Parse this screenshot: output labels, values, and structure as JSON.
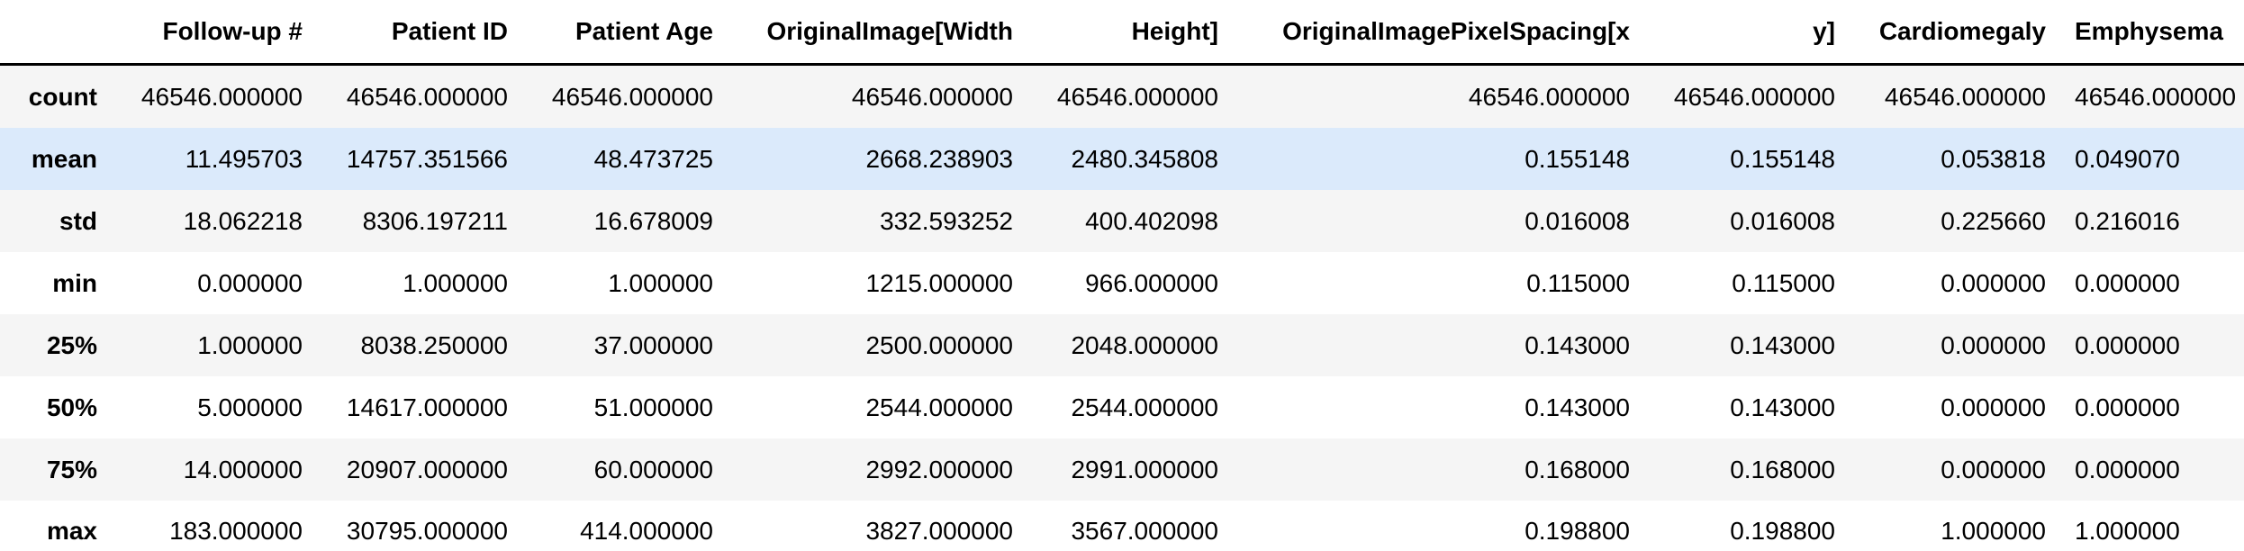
{
  "table": {
    "columns": [
      "",
      "Follow-up #",
      "Patient ID",
      "Patient Age",
      "OriginalImage[Width",
      "Height]",
      "OriginalImagePixelSpacing[x",
      "y]",
      "Cardiomegaly",
      "Emphysema"
    ],
    "rows": [
      {
        "label": "count",
        "values": [
          "46546.000000",
          "46546.000000",
          "46546.000000",
          "46546.000000",
          "46546.000000",
          "46546.000000",
          "46546.000000",
          "46546.000000",
          "46546.000000"
        ]
      },
      {
        "label": "mean",
        "values": [
          "11.495703",
          "14757.351566",
          "48.473725",
          "2668.238903",
          "2480.345808",
          "0.155148",
          "0.155148",
          "0.053818",
          "0.049070"
        ]
      },
      {
        "label": "std",
        "values": [
          "18.062218",
          "8306.197211",
          "16.678009",
          "332.593252",
          "400.402098",
          "0.016008",
          "0.016008",
          "0.225660",
          "0.216016"
        ]
      },
      {
        "label": "min",
        "values": [
          "0.000000",
          "1.000000",
          "1.000000",
          "1215.000000",
          "966.000000",
          "0.115000",
          "0.115000",
          "0.000000",
          "0.000000"
        ]
      },
      {
        "label": "25%",
        "values": [
          "1.000000",
          "8038.250000",
          "37.000000",
          "2500.000000",
          "2048.000000",
          "0.143000",
          "0.143000",
          "0.000000",
          "0.000000"
        ]
      },
      {
        "label": "50%",
        "values": [
          "5.000000",
          "14617.000000",
          "51.000000",
          "2544.000000",
          "2544.000000",
          "0.143000",
          "0.143000",
          "0.000000",
          "0.000000"
        ]
      },
      {
        "label": "75%",
        "values": [
          "14.000000",
          "20907.000000",
          "60.000000",
          "2992.000000",
          "2991.000000",
          "0.168000",
          "0.168000",
          "0.000000",
          "0.000000"
        ]
      },
      {
        "label": "max",
        "values": [
          "183.000000",
          "30795.000000",
          "414.000000",
          "3827.000000",
          "3567.000000",
          "0.198800",
          "0.198800",
          "1.000000",
          "1.000000"
        ]
      }
    ],
    "highlighted_row": "mean"
  }
}
